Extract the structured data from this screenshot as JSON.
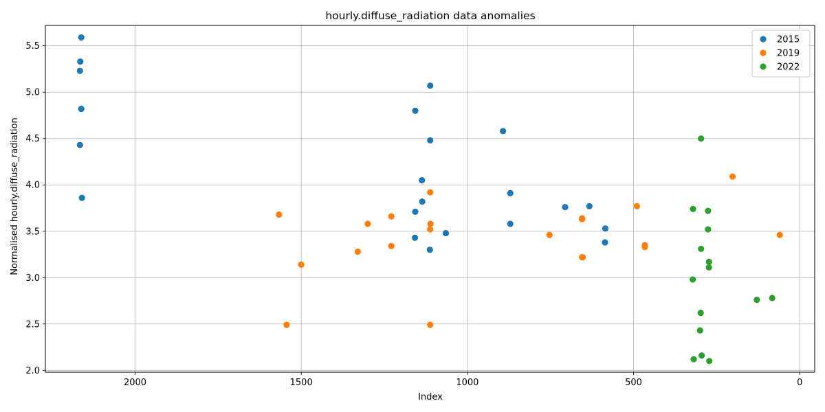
{
  "chart_data": {
    "type": "scatter",
    "title": "hourly.diffuse_radiation data anomalies",
    "xlabel": "Index",
    "ylabel": "Normalised hourly.diffuse_radiation",
    "xlim": [
      2270,
      -45
    ],
    "ylim": [
      1.98,
      5.72
    ],
    "x_inverted": true,
    "grid": true,
    "legend_position": "top-right",
    "xticks": [
      2000,
      1500,
      1000,
      500,
      0
    ],
    "yticks": [
      2.0,
      2.5,
      3.0,
      3.5,
      4.0,
      4.5,
      5.0,
      5.5
    ],
    "xtick_labels": [
      "2000",
      "1500",
      "1000",
      "500",
      "0"
    ],
    "ytick_labels": [
      "2.0",
      "2.5",
      "3.0",
      "3.5",
      "4.0",
      "4.5",
      "5.0",
      "5.5"
    ],
    "series": [
      {
        "name": "2015",
        "color": "#1f77b4",
        "points": [
          [
            2162,
            5.59
          ],
          [
            2165,
            5.33
          ],
          [
            2166,
            5.23
          ],
          [
            2162,
            4.82
          ],
          [
            2166,
            4.43
          ],
          [
            2160,
            3.86
          ],
          [
            1112,
            5.07
          ],
          [
            1157,
            4.8
          ],
          [
            1112,
            4.48
          ],
          [
            893,
            4.58
          ],
          [
            1137,
            4.05
          ],
          [
            871,
            3.91
          ],
          [
            1136,
            3.82
          ],
          [
            1157,
            3.71
          ],
          [
            706,
            3.76
          ],
          [
            633,
            3.77
          ],
          [
            871,
            3.58
          ],
          [
            585,
            3.53
          ],
          [
            1065,
            3.48
          ],
          [
            1158,
            3.43
          ],
          [
            586,
            3.38
          ],
          [
            1113,
            3.3
          ]
        ]
      },
      {
        "name": "2019",
        "color": "#ff7f0e",
        "points": [
          [
            1567,
            3.68
          ],
          [
            1300,
            3.58
          ],
          [
            1229,
            3.66
          ],
          [
            1112,
            3.92
          ],
          [
            1111,
            3.58
          ],
          [
            1112,
            3.52
          ],
          [
            1229,
            3.34
          ],
          [
            1330,
            3.28
          ],
          [
            1500,
            3.14
          ],
          [
            1544,
            2.49
          ],
          [
            1112,
            2.49
          ],
          [
            753,
            3.46
          ],
          [
            655,
            3.64
          ],
          [
            655,
            3.63
          ],
          [
            655,
            3.22
          ],
          [
            653,
            3.22
          ],
          [
            490,
            3.77
          ],
          [
            466,
            3.35
          ],
          [
            466,
            3.33
          ],
          [
            202,
            4.09
          ],
          [
            60,
            3.46
          ]
        ]
      },
      {
        "name": "2022",
        "color": "#2ca02c",
        "points": [
          [
            297,
            4.5
          ],
          [
            321,
            3.74
          ],
          [
            276,
            3.72
          ],
          [
            276,
            3.52
          ],
          [
            297,
            3.31
          ],
          [
            273,
            3.17
          ],
          [
            273,
            3.11
          ],
          [
            322,
            2.98
          ],
          [
            129,
            2.76
          ],
          [
            83,
            2.78
          ],
          [
            298,
            2.62
          ],
          [
            300,
            2.43
          ],
          [
            295,
            2.16
          ],
          [
            319,
            2.12
          ],
          [
            272,
            2.1
          ]
        ]
      }
    ]
  }
}
